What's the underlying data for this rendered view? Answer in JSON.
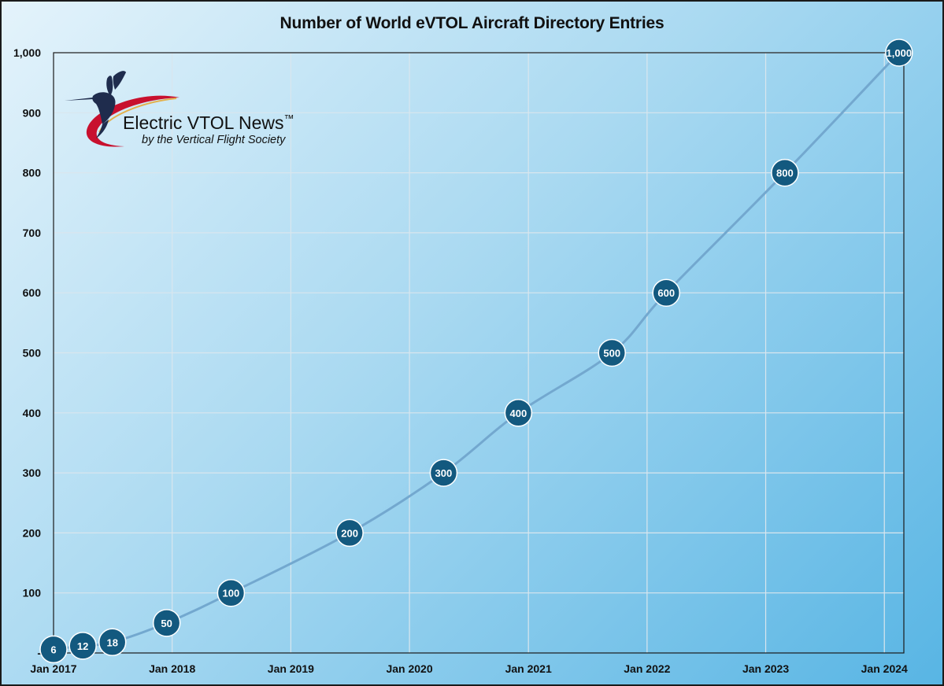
{
  "chart_data": {
    "type": "line",
    "title": "Number of World eVTOL Aircraft Directory Entries",
    "xlabel": "",
    "ylabel": "",
    "x_range": [
      "2017-01-01",
      "2024-03-01"
    ],
    "ylim": [
      0,
      1000
    ],
    "y_ticks": [
      0,
      100,
      200,
      300,
      400,
      500,
      600,
      700,
      800,
      900,
      1000
    ],
    "y_tick_labels": [
      "-",
      "100",
      "200",
      "300",
      "400",
      "500",
      "600",
      "700",
      "800",
      "900",
      "1,000"
    ],
    "x_ticks": [
      "2017-01-01",
      "2018-01-01",
      "2019-01-01",
      "2020-01-01",
      "2021-01-01",
      "2022-01-01",
      "2023-01-01",
      "2024-01-01"
    ],
    "x_tick_labels": [
      "Jan 2017",
      "Jan 2018",
      "Jan 2019",
      "Jan 2020",
      "Jan 2021",
      "Jan 2022",
      "Jan 2023",
      "Jan 2024"
    ],
    "grid": true,
    "points": [
      {
        "x": "2017-01-01",
        "y": 6,
        "label": "6"
      },
      {
        "x": "2017-04-01",
        "y": 12,
        "label": "12"
      },
      {
        "x": "2017-07-01",
        "y": 18,
        "label": "18"
      },
      {
        "x": "2017-12-15",
        "y": 50,
        "label": "50"
      },
      {
        "x": "2018-07-01",
        "y": 100,
        "label": "100"
      },
      {
        "x": "2019-07-01",
        "y": 200,
        "label": "200"
      },
      {
        "x": "2020-04-15",
        "y": 300,
        "label": "300"
      },
      {
        "x": "2020-12-01",
        "y": 400,
        "label": "400"
      },
      {
        "x": "2021-09-15",
        "y": 500,
        "label": "500"
      },
      {
        "x": "2022-03-01",
        "y": 600,
        "label": "600"
      },
      {
        "x": "2023-03-01",
        "y": 800,
        "label": "800"
      },
      {
        "x": "2024-02-15",
        "y": 1000,
        "label": "1,000"
      }
    ],
    "colors": {
      "line": "#73a8cf",
      "marker": "#13597f",
      "marker_border": "#ffffff",
      "grid": "#d9e6ee",
      "axis": "#1a1a1a"
    }
  },
  "logo": {
    "name": "Electric VTOL News",
    "trademark": "™",
    "subtitle": "by the Vertical Flight Society",
    "colors": {
      "bird": "#1f2c4d",
      "swoosh": "#c8102e",
      "accent": "#e3b04b"
    }
  }
}
